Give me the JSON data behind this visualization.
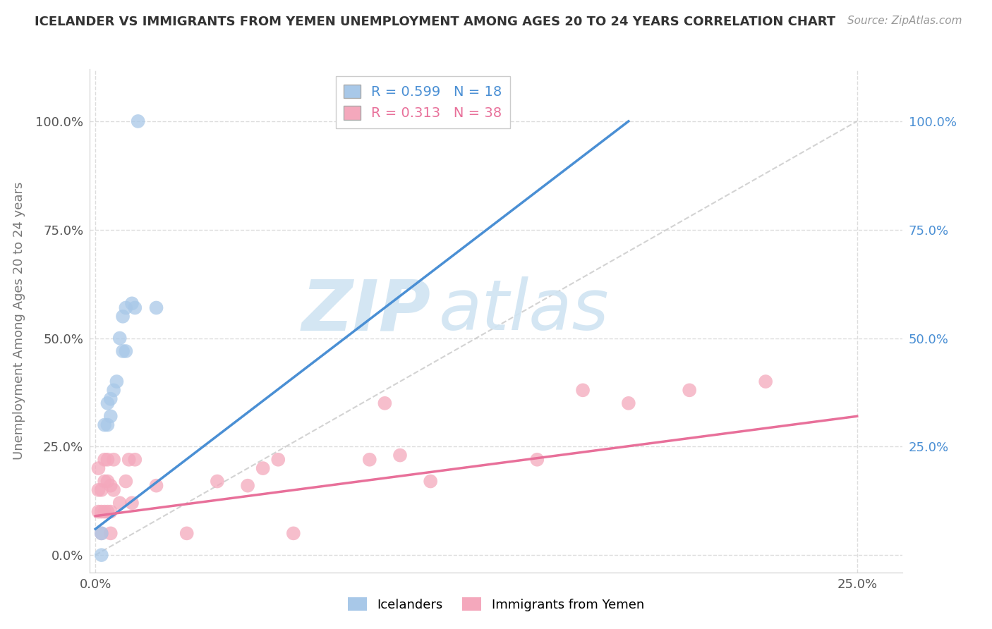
{
  "title": "ICELANDER VS IMMIGRANTS FROM YEMEN UNEMPLOYMENT AMONG AGES 20 TO 24 YEARS CORRELATION CHART",
  "source": "Source: ZipAtlas.com",
  "ylabel": "Unemployment Among Ages 20 to 24 years",
  "xlim": [
    -0.002,
    0.265
  ],
  "ylim": [
    -0.04,
    1.12
  ],
  "ytick_labels": [
    "0.0%",
    "25.0%",
    "50.0%",
    "75.0%",
    "100.0%"
  ],
  "ytick_values": [
    0.0,
    0.25,
    0.5,
    0.75,
    1.0
  ],
  "xtick_labels": [
    "0.0%",
    "25.0%"
  ],
  "xtick_values": [
    0.0,
    0.25
  ],
  "right_ytick_labels": [
    "100.0%",
    "75.0%",
    "50.0%",
    "25.0%"
  ],
  "right_ytick_values": [
    1.0,
    0.75,
    0.5,
    0.25
  ],
  "legend_blue_r": "0.599",
  "legend_blue_n": "18",
  "legend_pink_r": "0.313",
  "legend_pink_n": "38",
  "blue_color": "#a8c8e8",
  "pink_color": "#f4a8bc",
  "blue_line_color": "#4a8fd4",
  "pink_line_color": "#e8709a",
  "diagonal_color": "#c8c8c8",
  "watermark_zip": "ZIP",
  "watermark_atlas": "atlas",
  "blue_scatter_x": [
    0.002,
    0.002,
    0.003,
    0.004,
    0.004,
    0.005,
    0.005,
    0.006,
    0.007,
    0.008,
    0.009,
    0.009,
    0.01,
    0.01,
    0.012,
    0.013,
    0.014,
    0.02
  ],
  "blue_scatter_y": [
    0.05,
    0.0,
    0.3,
    0.3,
    0.35,
    0.32,
    0.36,
    0.38,
    0.4,
    0.5,
    0.55,
    0.47,
    0.47,
    0.57,
    0.58,
    0.57,
    1.0,
    0.57
  ],
  "pink_scatter_x": [
    0.001,
    0.001,
    0.001,
    0.002,
    0.002,
    0.002,
    0.003,
    0.003,
    0.003,
    0.004,
    0.004,
    0.004,
    0.005,
    0.005,
    0.005,
    0.006,
    0.006,
    0.008,
    0.01,
    0.011,
    0.012,
    0.013,
    0.02,
    0.03,
    0.04,
    0.05,
    0.055,
    0.06,
    0.065,
    0.09,
    0.095,
    0.1,
    0.11,
    0.145,
    0.16,
    0.175,
    0.195,
    0.22
  ],
  "pink_scatter_y": [
    0.1,
    0.15,
    0.2,
    0.05,
    0.1,
    0.15,
    0.1,
    0.17,
    0.22,
    0.1,
    0.17,
    0.22,
    0.05,
    0.1,
    0.16,
    0.15,
    0.22,
    0.12,
    0.17,
    0.22,
    0.12,
    0.22,
    0.16,
    0.05,
    0.17,
    0.16,
    0.2,
    0.22,
    0.05,
    0.22,
    0.35,
    0.23,
    0.17,
    0.22,
    0.38,
    0.35,
    0.38,
    0.4
  ],
  "blue_line_x0": 0.0,
  "blue_line_y0": 0.06,
  "blue_line_x1": 0.175,
  "blue_line_y1": 1.0,
  "pink_line_x0": 0.0,
  "pink_line_y0": 0.09,
  "pink_line_x1": 0.25,
  "pink_line_y1": 0.32
}
